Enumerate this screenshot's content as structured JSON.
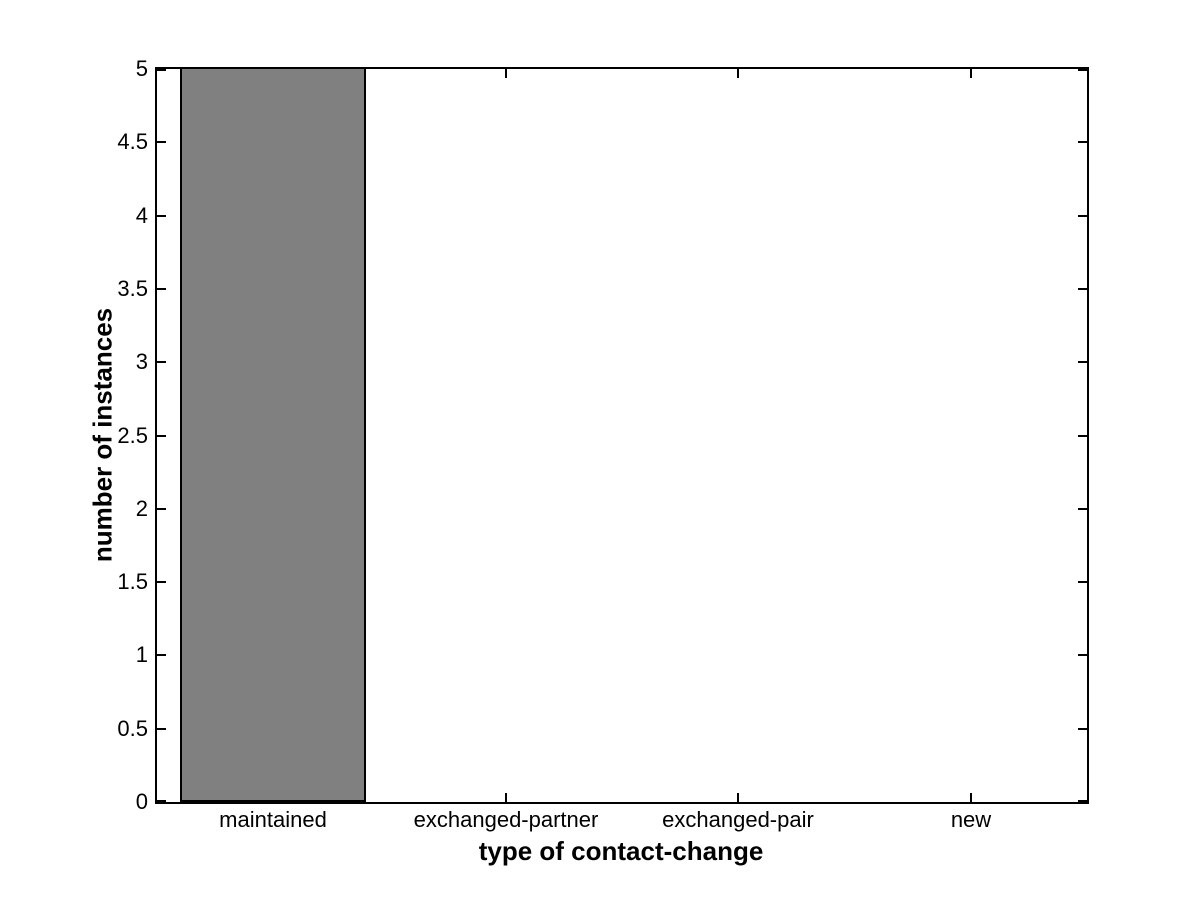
{
  "figure": {
    "background": "#ffffff"
  },
  "chart_data": {
    "type": "bar",
    "title": "",
    "categories": [
      "maintained",
      "exchanged-partner",
      "exchanged-pair",
      "new"
    ],
    "values": [
      5,
      0,
      0,
      0
    ],
    "xlabel": "type of contact-change",
    "ylabel": "number of instances",
    "ylim": [
      0,
      5
    ],
    "yticks": [
      0,
      0.5,
      1,
      1.5,
      2,
      2.5,
      3,
      3.5,
      4,
      4.5,
      5
    ],
    "ytick_labels": [
      "0",
      "0.5",
      "1",
      "1.5",
      "2",
      "2.5",
      "3",
      "3.5",
      "4",
      "4.5",
      "5"
    ],
    "bar_width_fraction": 0.8,
    "bar_fill_color": "#808080",
    "bar_edge_color": "#000000",
    "axis_color": "#000000",
    "tick_direction": "in",
    "box": true,
    "grid": false,
    "legend": "none"
  }
}
